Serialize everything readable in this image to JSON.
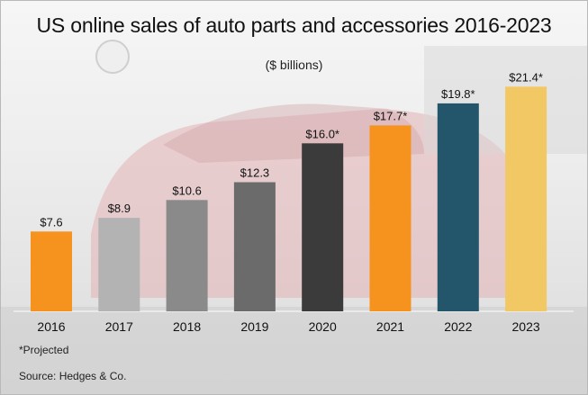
{
  "title": "US online sales of auto parts and accessories 2016-2023",
  "subtitle": "($ billions)",
  "footnote": "*Projected",
  "source": "Source: Hedges & Co.",
  "chart_data": {
    "type": "bar",
    "title": "US online sales of auto parts and accessories 2016-2023",
    "subtitle": "($ billions)",
    "categories": [
      "2016",
      "2017",
      "2018",
      "2019",
      "2020",
      "2021",
      "2022",
      "2023"
    ],
    "values": [
      7.6,
      8.9,
      10.6,
      12.3,
      16.0,
      17.7,
      19.8,
      21.4
    ],
    "data_labels": [
      "$7.6",
      "$8.9",
      "$10.6",
      "$12.3",
      "$16.0*",
      "$17.7*",
      "$19.8*",
      "$21.4*"
    ],
    "projected": [
      false,
      false,
      false,
      false,
      true,
      true,
      true,
      true
    ],
    "bar_colors": [
      "#f6921e",
      "#b3b3b3",
      "#8a8a8a",
      "#6b6b6b",
      "#3b3b3b",
      "#f6921e",
      "#23566b",
      "#f2c864"
    ],
    "ylim": [
      0,
      24
    ],
    "grid": false,
    "xlabel": "",
    "ylabel": ""
  }
}
